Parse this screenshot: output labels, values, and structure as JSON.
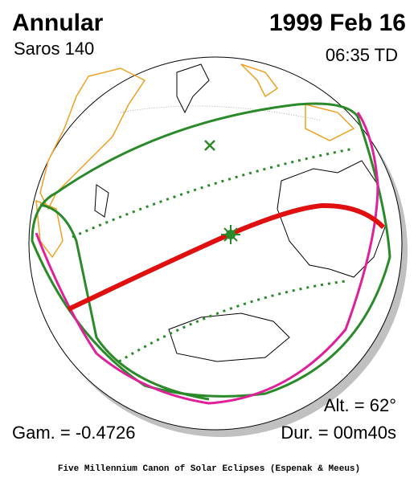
{
  "header": {
    "type": "Annular",
    "saros": "Saros 140",
    "date": "1999 Feb 16",
    "time": "06:35 TD"
  },
  "footer": {
    "gamma": "Gam. = -0.4726",
    "altitude": "Alt. = 62°",
    "duration": "Dur. = 00m40s",
    "credit": "Five Millennium Canon of Solar Eclipses (Espenak & Meeus)"
  }
}
